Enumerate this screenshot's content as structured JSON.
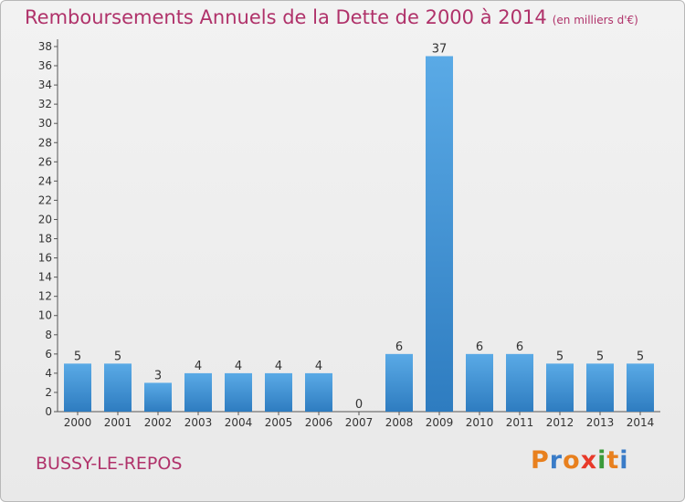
{
  "title": "Remboursements Annuels de la Dette de 2000 à 2014",
  "title_unit": "(en milliers d'€)",
  "commune": "BUSSY-LE-REPOS",
  "logo": {
    "text": "Proxiti",
    "colors": [
      "#e8801e",
      "#3a7cc8",
      "#e8801e",
      "#e83a2a",
      "#3a9a3a",
      "#e8801e",
      "#3a7cc8"
    ]
  },
  "colors": {
    "bar": "#4f9fdf",
    "bar_dark": "#2e7cc0",
    "title": "#b0326a"
  },
  "chart_data": {
    "type": "bar",
    "categories": [
      "2000",
      "2001",
      "2002",
      "2003",
      "2004",
      "2005",
      "2006",
      "2007",
      "2008",
      "2009",
      "2010",
      "2011",
      "2012",
      "2013",
      "2014"
    ],
    "values": [
      5,
      5,
      3,
      4,
      4,
      4,
      4,
      0,
      6,
      37,
      6,
      6,
      5,
      5,
      5
    ],
    "ylim": [
      0,
      38
    ],
    "yticks": [
      0,
      2,
      4,
      6,
      8,
      10,
      12,
      14,
      16,
      18,
      20,
      22,
      24,
      26,
      28,
      30,
      32,
      34,
      36,
      38
    ],
    "grid": false,
    "legend": "none"
  }
}
